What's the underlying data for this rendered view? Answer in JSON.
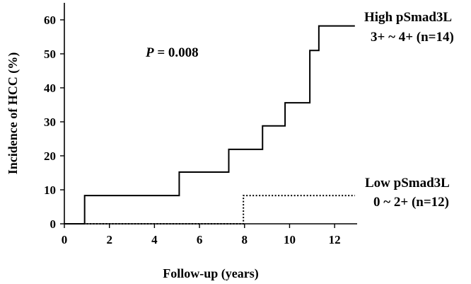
{
  "chart_data": {
    "type": "line",
    "step": true,
    "title": "",
    "xlabel": "Follow-up (years)",
    "ylabel": "Incidence of HCC (%)",
    "xlim": [
      0,
      13
    ],
    "ylim": [
      0,
      65
    ],
    "xticks": [
      0,
      2,
      4,
      6,
      8,
      10,
      12
    ],
    "yticks": [
      0,
      10,
      20,
      30,
      40,
      50,
      60
    ],
    "grid": false,
    "legend_placement": "right",
    "annotation": {
      "p_label": "P",
      "p_rest": " = 0.008"
    },
    "series": [
      {
        "name": "High pSmad3L",
        "name_line2": "3+ ~ 4+ (n=14)",
        "style": "solid",
        "x": [
          0,
          0.9,
          5.1,
          7.3,
          8.8,
          9.8,
          10.9,
          11.3,
          12.9
        ],
        "y": [
          0,
          8.3,
          15.2,
          21.9,
          28.8,
          35.6,
          51.0,
          58.2,
          58.2
        ]
      },
      {
        "name": "Low pSmad3L",
        "name_line2": "0 ~ 2+ (n=12)",
        "style": "dotted",
        "x": [
          0,
          7.95,
          12.9
        ],
        "y": [
          0,
          8.3,
          8.3
        ]
      }
    ]
  }
}
